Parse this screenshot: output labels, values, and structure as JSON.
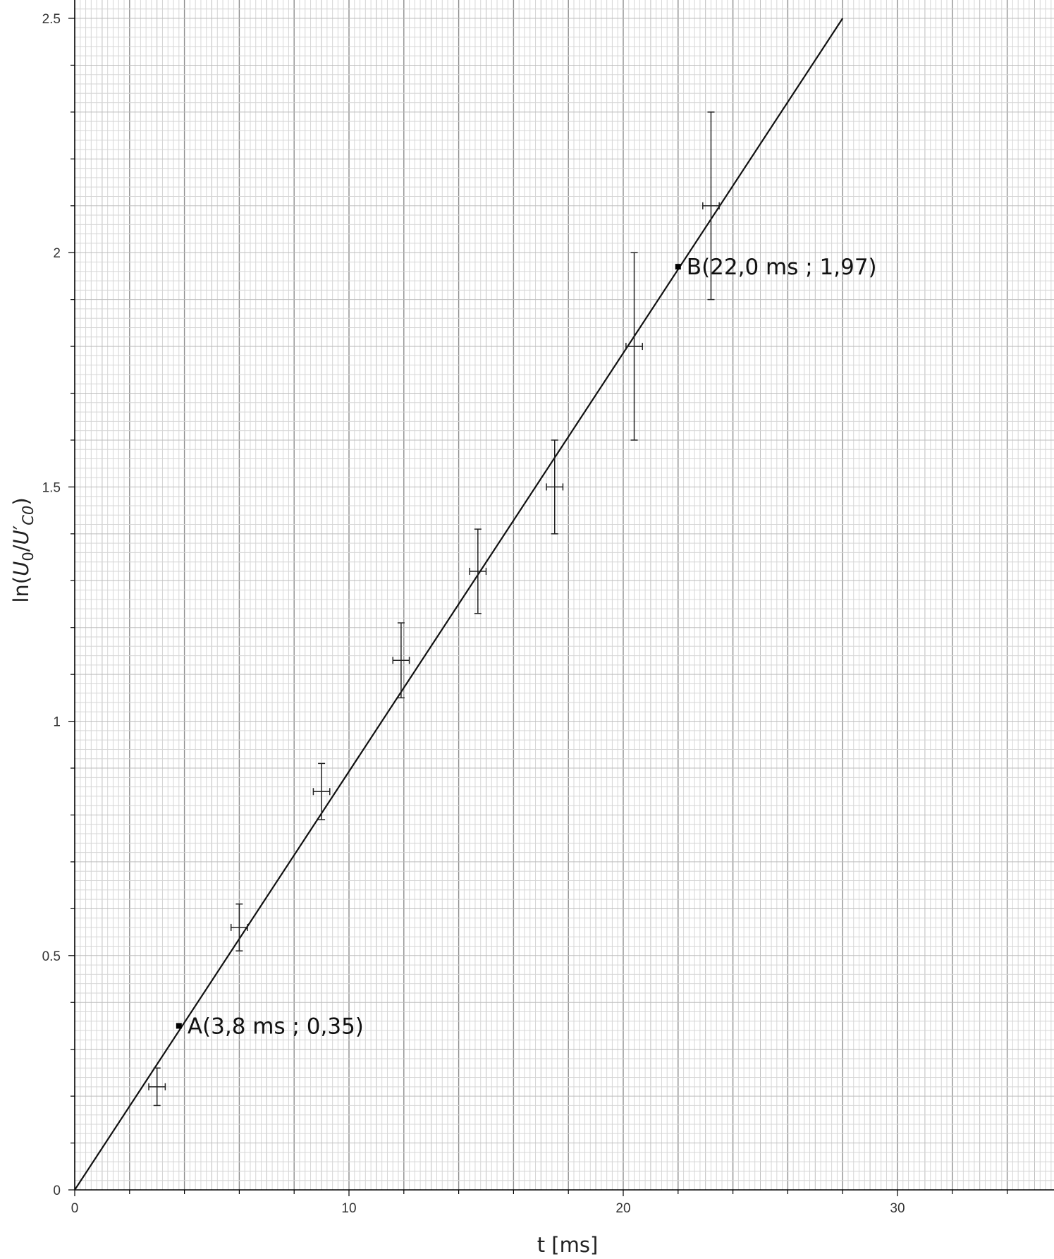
{
  "chart_data": {
    "type": "scatter",
    "xlabel": "t [ms]",
    "ylabel": {
      "prefix": "ln(",
      "num_base": "U",
      "num_sub": "0",
      "sep": "/",
      "den_base": "U",
      "den_prime": "′",
      "den_sub": "C0",
      "suffix": ")"
    },
    "xlim": [
      0,
      35.8
    ],
    "ylim": [
      0,
      2.5
    ],
    "x_ticks": [
      0,
      10,
      20,
      30
    ],
    "x_tick_labels": [
      "0",
      "10",
      "20",
      "30"
    ],
    "y_ticks": [
      0,
      0.5,
      1,
      1.5,
      2,
      2.5
    ],
    "y_tick_labels": [
      "0",
      "0.5",
      "1",
      "1.5",
      "2",
      "2.5"
    ],
    "grid": "on (fine graph-paper grid)",
    "series": [
      {
        "points": [
          {
            "x": 3.0,
            "y": 0.22,
            "xerr": 0.3,
            "yerr": 0.04
          },
          {
            "x": 6.0,
            "y": 0.56,
            "xerr": 0.3,
            "yerr": 0.05
          },
          {
            "x": 9.0,
            "y": 0.85,
            "xerr": 0.3,
            "yerr": 0.06
          },
          {
            "x": 11.9,
            "y": 1.13,
            "xerr": 0.3,
            "yerr": 0.08
          },
          {
            "x": 14.7,
            "y": 1.32,
            "xerr": 0.3,
            "yerr": 0.09
          },
          {
            "x": 17.5,
            "y": 1.5,
            "xerr": 0.3,
            "yerr": 0.1
          },
          {
            "x": 20.4,
            "y": 1.8,
            "xerr": 0.3,
            "yerr": 0.2
          },
          {
            "x": 23.2,
            "y": 2.1,
            "xerr": 0.3,
            "yerr": 0.2
          }
        ]
      }
    ],
    "fit_line": {
      "x0": 0,
      "y0": 0,
      "x1": 28.0,
      "y1": 2.5
    },
    "annotations": [
      {
        "x": 3.8,
        "y": 0.35,
        "text": "A(3,8 ms ; 0,35)"
      },
      {
        "x": 22.0,
        "y": 1.97,
        "text": "B(22,0 ms ; 1,97)"
      }
    ]
  }
}
